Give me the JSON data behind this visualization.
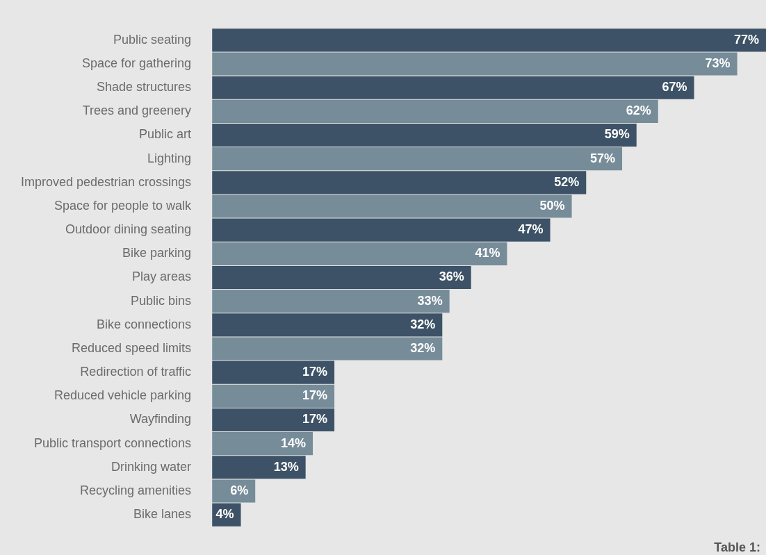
{
  "chart_data": {
    "type": "bar",
    "orientation": "horizontal",
    "categories": [
      "Public seating",
      "Space for gathering",
      "Shade structures",
      "Trees and greenery",
      "Public art",
      "Lighting",
      "Improved pedestrian crossings",
      "Space for people to walk",
      "Outdoor dining seating",
      "Bike parking",
      "Play areas",
      "Public bins",
      "Bike connections",
      "Reduced speed limits",
      "Redirection of traffic",
      "Reduced vehicle parking",
      "Wayfinding",
      "Public transport connections",
      "Drinking water",
      "Recycling amenities",
      "Bike lanes"
    ],
    "values": [
      77,
      73,
      67,
      62,
      59,
      57,
      52,
      50,
      47,
      41,
      36,
      33,
      32,
      32,
      17,
      17,
      17,
      14,
      13,
      6,
      4
    ],
    "colors": [
      "#3d5266",
      "#778c99",
      "#3d5266",
      "#778c99",
      "#3d5266",
      "#778c99",
      "#3d5266",
      "#778c99",
      "#3d5266",
      "#778c99",
      "#3d5266",
      "#778c99",
      "#3d5266",
      "#778c99",
      "#3d5266",
      "#778c99",
      "#3d5266",
      "#778c99",
      "#3d5266",
      "#778c99",
      "#3d5266"
    ],
    "value_labels": [
      "77%",
      "73%",
      "67%",
      "62%",
      "59%",
      "57%",
      "52%",
      "50%",
      "47%",
      "41%",
      "36%",
      "33%",
      "32%",
      "32%",
      "17%",
      "17%",
      "17%",
      "14%",
      "13%",
      "6%",
      "4%"
    ],
    "xlim": [
      0,
      77
    ],
    "tick_labels": "y",
    "grid": false,
    "legend": false,
    "annotations": [
      "Table 1:"
    ]
  }
}
